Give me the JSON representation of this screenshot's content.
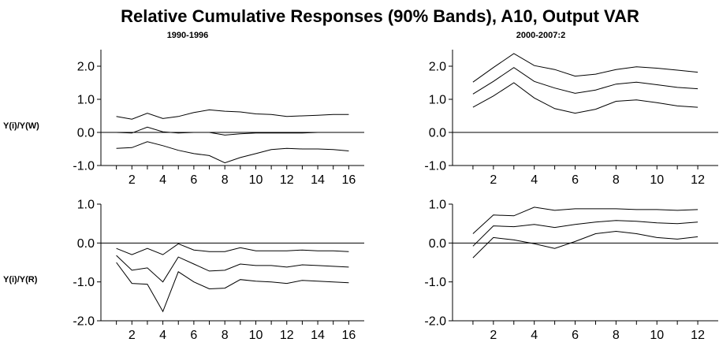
{
  "title": "Relative Cumulative Responses (90% Bands), A10, Output VAR",
  "column_titles": [
    "1990-1996",
    "2000-2007:2"
  ],
  "row_labels": [
    "Y(i)/Y(W)",
    "Y(i)/Y(R)"
  ],
  "chart_data": [
    {
      "type": "line",
      "title": "1990-1996",
      "ylabel": "Y(i)/Y(W)",
      "x": [
        1,
        2,
        3,
        4,
        5,
        6,
        7,
        8,
        9,
        10,
        11,
        12,
        13,
        14,
        15,
        16
      ],
      "xlim": [
        0,
        17
      ],
      "ylim": [
        -1.0,
        2.5
      ],
      "xticks": [
        2,
        4,
        6,
        8,
        10,
        12,
        14,
        16
      ],
      "yticks": [
        -1.0,
        0.0,
        1.0,
        2.0
      ],
      "ytick_labels": [
        "-1.0",
        "0.0",
        "1.0",
        "2.0"
      ],
      "zero_line": true,
      "series": [
        {
          "values": [
            0.48,
            0.4,
            0.58,
            0.42,
            0.48,
            0.6,
            0.68,
            0.64,
            0.62,
            0.56,
            0.54,
            0.48,
            0.5,
            0.52,
            0.54,
            0.54
          ]
        },
        {
          "values": [
            0.0,
            -0.02,
            0.16,
            0.02,
            -0.02,
            0.0,
            0.0,
            -0.08,
            -0.04,
            -0.02,
            -0.02,
            -0.02,
            -0.02,
            0.0,
            0.0,
            0.0
          ]
        },
        {
          "values": [
            -0.48,
            -0.46,
            -0.28,
            -0.4,
            -0.54,
            -0.64,
            -0.7,
            -0.92,
            -0.76,
            -0.64,
            -0.52,
            -0.48,
            -0.5,
            -0.5,
            -0.52,
            -0.56
          ]
        }
      ]
    },
    {
      "type": "line",
      "title": "2000-2007:2",
      "ylabel": "",
      "x": [
        1,
        2,
        3,
        4,
        5,
        6,
        7,
        8,
        9,
        10,
        11,
        12
      ],
      "xlim": [
        0,
        13
      ],
      "ylim": [
        -1.0,
        2.5
      ],
      "xticks": [
        2,
        4,
        6,
        8,
        10,
        12
      ],
      "yticks": [
        -1.0,
        0.0,
        1.0,
        2.0
      ],
      "ytick_labels": [
        "-1.0",
        "0.0",
        "1.0",
        "2.0"
      ],
      "zero_line": true,
      "series": [
        {
          "values": [
            1.52,
            1.96,
            2.38,
            2.02,
            1.9,
            1.7,
            1.76,
            1.9,
            1.98,
            1.94,
            1.88,
            1.82
          ]
        },
        {
          "values": [
            1.16,
            1.54,
            1.96,
            1.54,
            1.34,
            1.18,
            1.28,
            1.46,
            1.52,
            1.44,
            1.36,
            1.32
          ]
        },
        {
          "values": [
            0.76,
            1.1,
            1.5,
            1.04,
            0.72,
            0.58,
            0.7,
            0.94,
            0.98,
            0.9,
            0.8,
            0.76
          ]
        }
      ]
    },
    {
      "type": "line",
      "title": "",
      "ylabel": "Y(i)/Y(R)",
      "x": [
        1,
        2,
        3,
        4,
        5,
        6,
        7,
        8,
        9,
        10,
        11,
        12,
        13,
        14,
        15,
        16
      ],
      "xlim": [
        0,
        17
      ],
      "ylim": [
        -2.0,
        1.0
      ],
      "xticks": [
        2,
        4,
        6,
        8,
        10,
        12,
        14,
        16
      ],
      "yticks": [
        -2.0,
        -1.0,
        0.0,
        1.0
      ],
      "ytick_labels": [
        "-2.0",
        "-1.0",
        "0.0",
        "1.0"
      ],
      "zero_line": true,
      "series": [
        {
          "values": [
            -0.14,
            -0.3,
            -0.14,
            -0.3,
            -0.02,
            -0.18,
            -0.22,
            -0.22,
            -0.12,
            -0.2,
            -0.2,
            -0.2,
            -0.18,
            -0.2,
            -0.2,
            -0.22
          ]
        },
        {
          "values": [
            -0.32,
            -0.7,
            -0.64,
            -1.0,
            -0.36,
            -0.54,
            -0.72,
            -0.7,
            -0.54,
            -0.58,
            -0.58,
            -0.62,
            -0.56,
            -0.58,
            -0.6,
            -0.62
          ]
        },
        {
          "values": [
            -0.5,
            -1.04,
            -1.06,
            -1.76,
            -0.74,
            -1.0,
            -1.18,
            -1.16,
            -0.94,
            -0.98,
            -1.0,
            -1.04,
            -0.96,
            -0.98,
            -1.0,
            -1.02
          ]
        }
      ]
    },
    {
      "type": "line",
      "title": "",
      "ylabel": "",
      "x": [
        1,
        2,
        3,
        4,
        5,
        6,
        7,
        8,
        9,
        10,
        11,
        12
      ],
      "xlim": [
        0,
        13
      ],
      "ylim": [
        -2.0,
        1.0
      ],
      "xticks": [
        2,
        4,
        6,
        8,
        10,
        12
      ],
      "yticks": [
        -2.0,
        -1.0,
        0.0,
        1.0
      ],
      "ytick_labels": [
        "-2.0",
        "-1.0",
        "0.0",
        "1.0"
      ],
      "zero_line": true,
      "series": [
        {
          "values": [
            0.24,
            0.72,
            0.7,
            0.92,
            0.84,
            0.88,
            0.88,
            0.88,
            0.86,
            0.86,
            0.84,
            0.86
          ]
        },
        {
          "values": [
            -0.08,
            0.44,
            0.42,
            0.48,
            0.4,
            0.48,
            0.54,
            0.58,
            0.56,
            0.52,
            0.5,
            0.54
          ]
        },
        {
          "values": [
            -0.38,
            0.14,
            0.08,
            -0.02,
            -0.14,
            0.04,
            0.24,
            0.3,
            0.24,
            0.14,
            0.1,
            0.16
          ]
        }
      ]
    }
  ]
}
